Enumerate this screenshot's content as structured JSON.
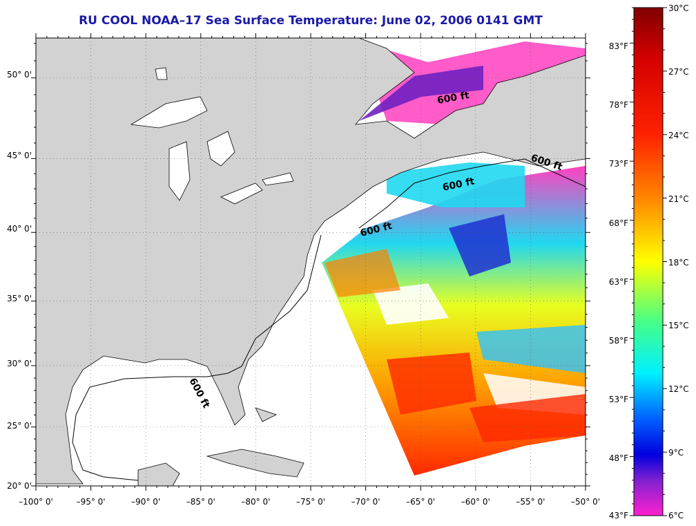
{
  "title": "RU COOL  NOAA–17  Sea Surface Temperature:  June 02, 2006 0141 GMT",
  "map": {
    "lon_range": [
      -100,
      -50
    ],
    "lat_range": [
      20,
      52.3
    ],
    "longitude_labels": [
      "–100° 0'",
      "–95° 0'",
      "–90° 0'",
      "–85° 0'",
      "–80° 0'",
      "–75° 0'",
      "–70° 0'",
      "–65° 0'",
      "–60° 0'",
      "–55° 0'",
      "–50° 0'"
    ],
    "latitude_labels": [
      "20° 0'",
      "25° 0'",
      "30° 0'",
      "35° 0'",
      "40° 0'",
      "45° 0'",
      "50° 0'"
    ],
    "contour_label": "600 ft",
    "land_color": "#d2d2d2",
    "no_data_color": "#ffffff"
  },
  "colorbar": {
    "celsius_labels": [
      "30°C",
      "27°C",
      "24°C",
      "21°C",
      "18°C",
      "15°C",
      "12°C",
      "9°C",
      "6°C"
    ],
    "fahrenheit_labels": [
      "83°F",
      "78°F",
      "73°F",
      "68°F",
      "63°F",
      "58°F",
      "53°F",
      "48°F",
      "43°F"
    ],
    "celsius_range": [
      6,
      30
    ],
    "fahrenheit_range": [
      43,
      86
    ],
    "colors_top_to_bottom": [
      "#800000",
      "#ff0000",
      "#ff8800",
      "#ffff00",
      "#00ff88",
      "#00ffff",
      "#0044ff",
      "#0000ff",
      "#ff00ff"
    ]
  }
}
